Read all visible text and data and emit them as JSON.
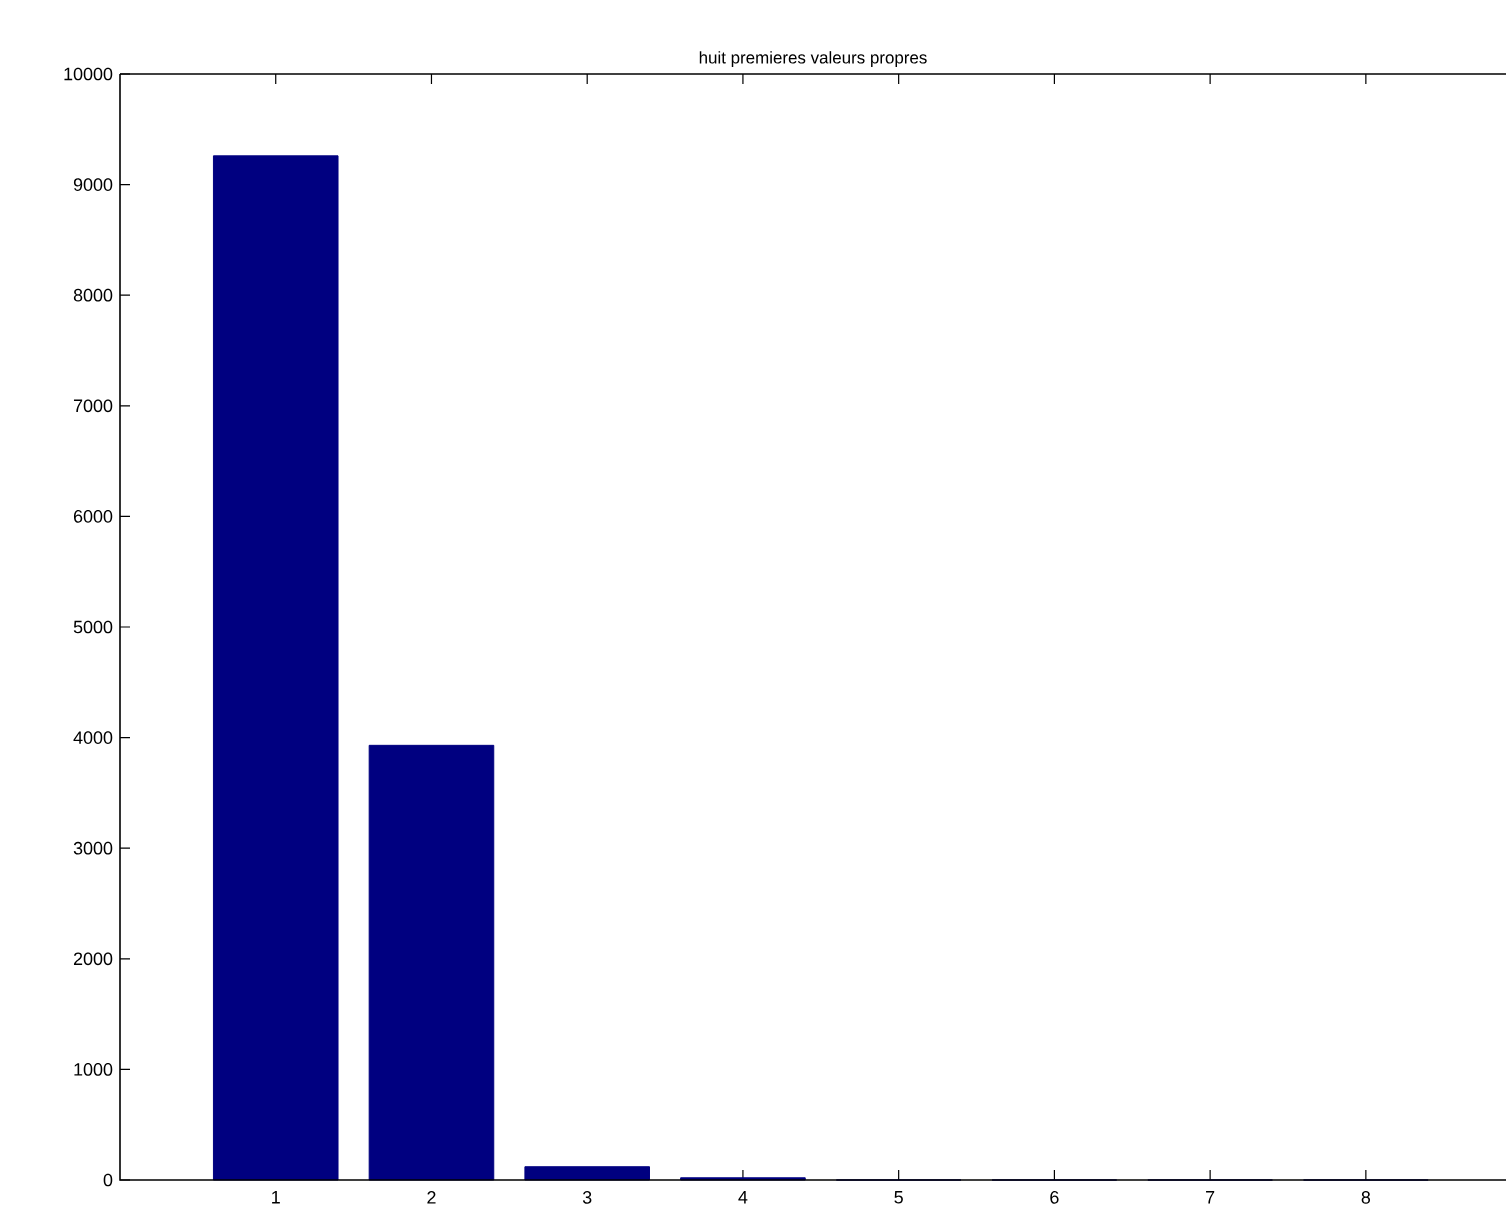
{
  "chart_data": {
    "type": "bar",
    "title": "huit premieres valeurs propres",
    "x": [
      1,
      2,
      3,
      4,
      5,
      6,
      7,
      8
    ],
    "values": [
      9260,
      3930,
      120,
      20,
      0,
      0,
      0,
      0
    ],
    "color": "#000080",
    "xlim": [
      0,
      8.9
    ],
    "xticks": [
      1,
      2,
      3,
      4,
      5,
      6,
      7,
      8
    ],
    "ylim": [
      0,
      10000
    ],
    "yticks": [
      0,
      1000,
      2000,
      3000,
      4000,
      5000,
      6000,
      7000,
      8000,
      9000,
      10000
    ]
  }
}
